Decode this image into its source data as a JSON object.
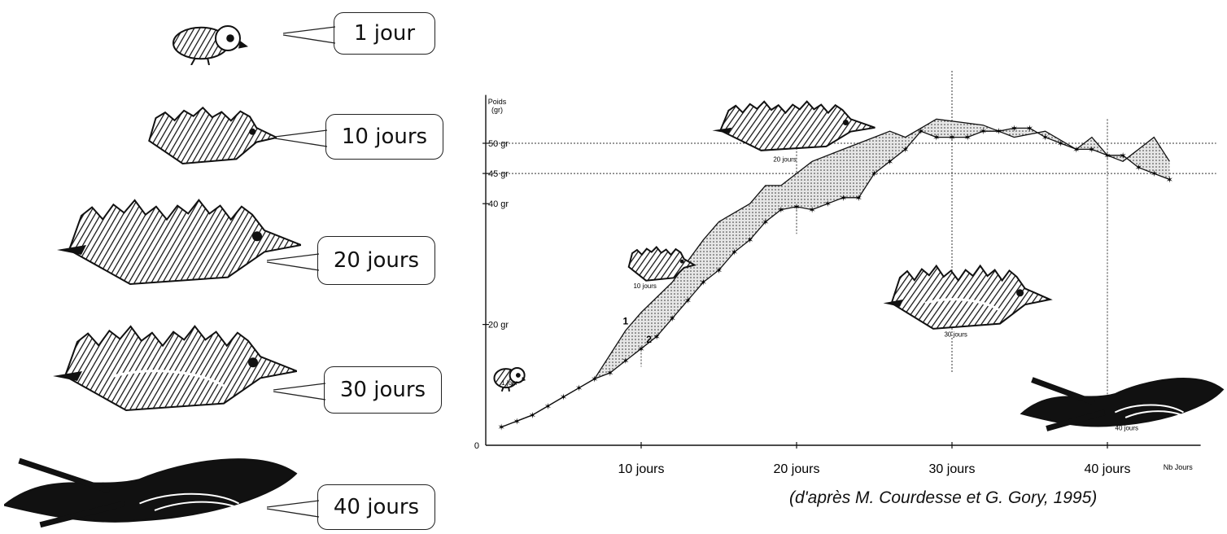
{
  "stages": [
    {
      "label": "1 jour",
      "icon": "swift-chick-icon"
    },
    {
      "label": "10 jours",
      "icon": "swift-chick-icon"
    },
    {
      "label": "20 jours",
      "icon": "swift-chick-icon"
    },
    {
      "label": "30 jours",
      "icon": "swift-chick-icon"
    },
    {
      "label": "40 jours",
      "icon": "swift-adult-icon"
    }
  ],
  "source": "(d'après M. Courdesse et G. Gory, 1995)",
  "chart_data": {
    "type": "area",
    "ylabel_line1": "Poids",
    "ylabel_line2": "(gr)",
    "xlabel": "Nb Jours",
    "xlim": [
      0,
      45
    ],
    "ylim": [
      0,
      58
    ],
    "y_ticks": [
      {
        "value": 0,
        "label": "0"
      },
      {
        "value": 20,
        "label": "20 gr"
      },
      {
        "value": 40,
        "label": "40 gr"
      },
      {
        "value": 45,
        "label": "45 gr"
      },
      {
        "value": 50,
        "label": "50 gr"
      }
    ],
    "x_ticks": [
      {
        "value": 10,
        "label": "10 jours"
      },
      {
        "value": 20,
        "label": "20 jours"
      },
      {
        "value": 30,
        "label": "30 jours"
      },
      {
        "value": 40,
        "label": "40 jours"
      }
    ],
    "reference_lines_y": [
      45,
      50
    ],
    "reference_lines_x": [
      10,
      20,
      30,
      40
    ],
    "series": [
      {
        "name": "1",
        "marker": "none",
        "x": [
          1,
          3,
          5,
          7,
          9,
          10,
          12,
          14,
          15,
          17,
          18,
          19,
          21,
          23,
          25,
          26,
          27,
          29,
          32,
          34,
          36,
          38,
          39,
          40,
          41,
          43,
          44
        ],
        "y": [
          3,
          5,
          8,
          11,
          19,
          22,
          27,
          34,
          37,
          40,
          43,
          43,
          47,
          49,
          51,
          52,
          51,
          54,
          53,
          51,
          52,
          49,
          51,
          48,
          47,
          51,
          47
        ]
      },
      {
        "name": "2",
        "marker": "star",
        "x": [
          1,
          2,
          3,
          4,
          5,
          6,
          7,
          8,
          9,
          10,
          11,
          12,
          13,
          14,
          15,
          16,
          17,
          18,
          19,
          20,
          21,
          22,
          23,
          24,
          25,
          26,
          27,
          28,
          29,
          30,
          31,
          32,
          33,
          34,
          35,
          36,
          37,
          38,
          39,
          40,
          41,
          42,
          43,
          44
        ],
        "y": [
          3,
          4,
          5,
          6.5,
          8,
          9.5,
          11,
          12,
          14,
          16,
          18,
          21,
          24,
          27,
          29,
          32,
          34,
          37,
          39,
          39.5,
          39,
          40,
          41,
          41,
          45,
          47,
          49,
          52,
          51,
          51,
          51,
          52,
          52,
          52.5,
          52.5,
          51,
          50,
          49,
          49,
          48,
          48,
          46,
          45,
          44
        ]
      }
    ],
    "shaded_between": [
      "1",
      "2"
    ],
    "series_label_points": [
      {
        "label": "1",
        "x": 9,
        "y": 20
      },
      {
        "label": "2",
        "x": 10.5,
        "y": 17
      }
    ],
    "inset_labels": [
      {
        "label": "1 jour",
        "x": 1,
        "y": 10
      },
      {
        "label": "10 jours",
        "x": 9.5,
        "y": 26
      },
      {
        "label": "20 jours",
        "x": 18.5,
        "y": 47
      },
      {
        "label": "30 jours",
        "x": 29.5,
        "y": 18
      },
      {
        "label": "40 jours",
        "x": 40.5,
        "y": 2.5
      }
    ]
  }
}
